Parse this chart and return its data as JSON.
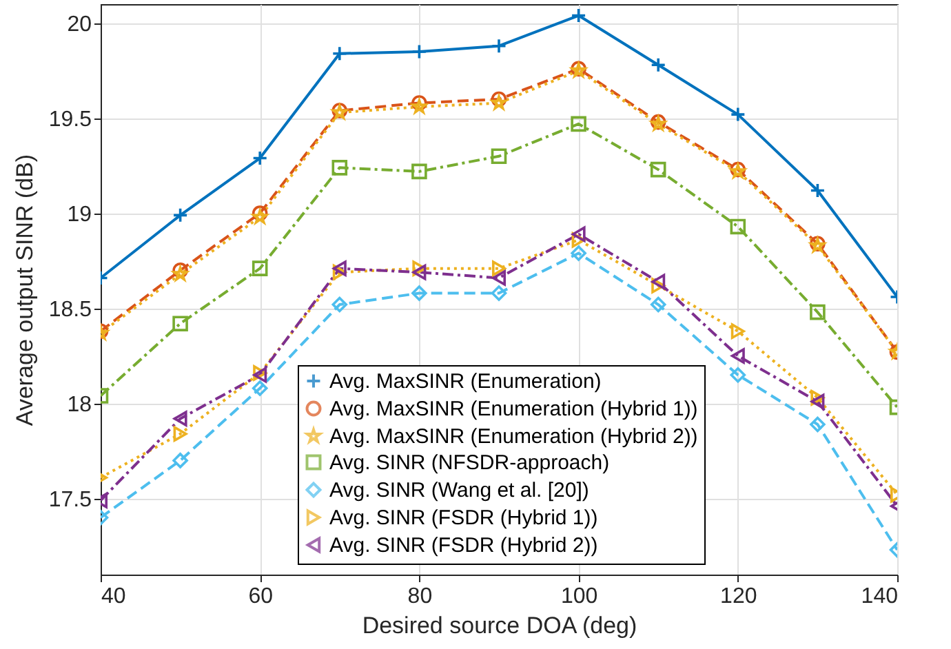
{
  "chart_data": {
    "type": "line",
    "xlabel": "Desired source DOA (deg)",
    "ylabel": "Average output SINR (dB)",
    "x": [
      40,
      50,
      60,
      70,
      80,
      90,
      100,
      110,
      120,
      130,
      140
    ],
    "xlim": [
      40,
      140
    ],
    "xticks": [
      40,
      60,
      80,
      100,
      120,
      140
    ],
    "ylim": [
      17.1,
      20.1
    ],
    "yticks": [
      17.5,
      18,
      18.5,
      19,
      19.5,
      20
    ],
    "grid": true,
    "legend": "bottom",
    "series": [
      {
        "name": "Avg. MaxSINR (Enumeration)",
        "color": "#0072bd",
        "marker": "cross",
        "line_style": "solid",
        "values": [
          18.66,
          18.99,
          19.29,
          19.84,
          19.85,
          19.88,
          20.04,
          19.78,
          19.52,
          19.12,
          18.56
        ]
      },
      {
        "name": "Avg. MaxSINR (Enumeration (Hybrid 1))",
        "color": "#d95319",
        "marker": "circle",
        "line_style": "dashed",
        "values": [
          18.38,
          18.7,
          19.0,
          19.54,
          19.58,
          19.6,
          19.76,
          19.48,
          19.23,
          18.84,
          18.27
        ]
      },
      {
        "name": "Avg. MaxSINR (Enumeration (Hybrid 2))",
        "color": "#edb120",
        "marker": "star",
        "line_style": "dotted",
        "values": [
          18.37,
          18.68,
          18.98,
          19.53,
          19.56,
          19.58,
          19.75,
          19.47,
          19.22,
          18.83,
          18.27
        ]
      },
      {
        "name": "Avg. SINR (NFSDR-approach)",
        "color": "#77ac30",
        "marker": "square",
        "line_style": "dashdot",
        "values": [
          18.04,
          18.42,
          18.71,
          19.24,
          19.22,
          19.3,
          19.47,
          19.23,
          18.93,
          18.48,
          17.98
        ]
      },
      {
        "name": "Avg. SINR (Wang et al. [20])",
        "color": "#4dbeee",
        "marker": "diamond",
        "line_style": "dashed",
        "values": [
          17.4,
          17.7,
          18.08,
          18.52,
          18.58,
          18.58,
          18.79,
          18.52,
          18.15,
          17.89,
          17.23
        ]
      },
      {
        "name": "Avg. SINR (FSDR (Hybrid 1))",
        "color": "#edb120",
        "marker": "triangle",
        "line_style": "dotted",
        "values": [
          17.61,
          17.84,
          18.16,
          18.69,
          18.71,
          18.71,
          18.86,
          18.62,
          18.38,
          18.03,
          17.52
        ]
      },
      {
        "name": "Avg. SINR (FSDR (Hybrid 2))",
        "color": "#7e2f8e",
        "marker": "triangle",
        "line_style": "dashdot",
        "values": [
          17.49,
          17.92,
          18.15,
          18.71,
          18.69,
          18.66,
          18.89,
          18.64,
          18.25,
          18.01,
          17.46
        ]
      }
    ]
  }
}
